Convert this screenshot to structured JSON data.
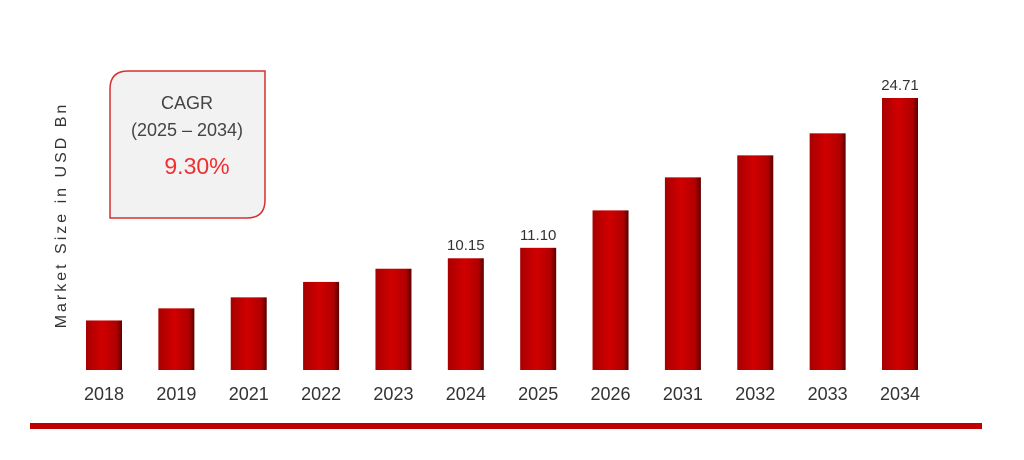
{
  "chart_data": {
    "type": "bar",
    "y_label": "Market Size in USD Bn",
    "annotation": {
      "title": "CAGR",
      "period": "(2025 – 2034)",
      "value": "9.30%"
    },
    "categories": [
      "2018",
      "2019",
      "2021",
      "2022",
      "2023",
      "2024",
      "2025",
      "2026",
      "2031",
      "2032",
      "2033",
      "2034"
    ],
    "values": [
      4.5,
      5.6,
      6.6,
      8.0,
      9.2,
      10.15,
      11.1,
      14.5,
      17.5,
      19.5,
      21.5,
      24.71
    ],
    "value_labels": [
      null,
      null,
      null,
      null,
      null,
      "10.15",
      "11.10",
      null,
      null,
      null,
      null,
      "24.71"
    ],
    "color": "#c00000"
  }
}
